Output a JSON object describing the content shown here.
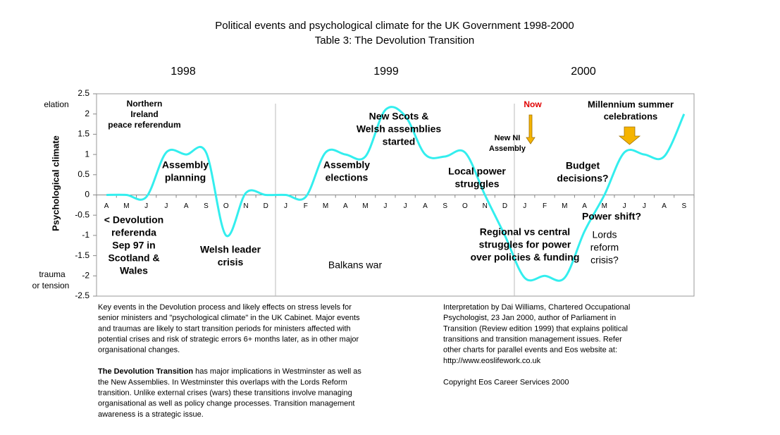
{
  "chart_data": {
    "type": "line",
    "title": "Political events and psychological climate for the UK Government 1998-2000",
    "subtitle": "Table 3:  The Devolution Transition",
    "years": [
      "1998",
      "1999",
      "2000"
    ],
    "y_axis_label": "Psychological climate",
    "y_top_label": "elation",
    "y_bottom_label": [
      "trauma",
      "or tension"
    ],
    "categories": [
      "A",
      "M",
      "J",
      "J",
      "A",
      "S",
      "O",
      "N",
      "D",
      "J",
      "F",
      "M",
      "A",
      "M",
      "J",
      "J",
      "A",
      "S",
      "O",
      "N",
      "D",
      "J",
      "F",
      "M",
      "A",
      "M",
      "J",
      "J",
      "A",
      "S"
    ],
    "values": [
      0,
      0,
      -0.05,
      1.05,
      1,
      1.05,
      -1,
      0.05,
      0,
      0,
      -0.05,
      1.05,
      1,
      0.95,
      2.1,
      1.95,
      1,
      0.95,
      1.05,
      0,
      -1,
      -2.05,
      -2,
      -2.05,
      -0.9,
      0,
      1.05,
      1,
      0.95,
      2
    ],
    "color": "#33eeee",
    "ylim": [
      -2.5,
      2.5
    ],
    "yticks": [
      2.5,
      2,
      1.5,
      1,
      0.5,
      0,
      -0.5,
      -1,
      -1.5,
      -2,
      -2.5
    ],
    "annotations": [
      [
        "Northern",
        "Ireland",
        "peace referendum"
      ],
      [
        "Assembly",
        "planning"
      ],
      [
        "< Devolution",
        "referenda",
        "Sep 97 in",
        "Scotland &",
        "Wales"
      ],
      [
        "Welsh leader",
        "crisis"
      ],
      [
        "Balkans war"
      ],
      [
        "New Scots &",
        "Welsh assemblies",
        "started"
      ],
      [
        "Assembly",
        "elections"
      ],
      [
        "Local power",
        "struggles"
      ],
      [
        "Now"
      ],
      [
        "New NI",
        "Assembly"
      ],
      [
        "Regional vs central",
        "struggles for power",
        "over policies & funding"
      ],
      [
        "Millennium summer",
        "celebrations"
      ],
      [
        "Budget",
        "decisions?"
      ],
      [
        "Power shift?"
      ],
      [
        "Lords",
        "reform",
        "crisis?"
      ]
    ],
    "notes_left": [
      "Key events in the Devolution process and likely effects on stress levels for",
      "senior ministers and \"psychological climate\" in the UK Cabinet. Major events",
      "and traumas are likely to start transition periods for ministers affected with",
      "potential crises and risk of strategic  errors 6+ months later, as in other major",
      "organisational changes."
    ],
    "notes_left_bold": "The Devolution Transition",
    "notes_left_2": [
      " has major implications in Westminster as well as",
      "the New Assemblies.  In Westminster this overlaps with the Lords Reform",
      "transition.  Unlike external crises (wars) these transitions involve managing",
      "organisational as well as policy change processes.  Transition management",
      "awareness is a strategic issue."
    ],
    "notes_right": [
      "Interpretation by Dai Williams, Chartered Occupational",
      "Psychologist, 23 Jan 2000, author of Parliament in",
      "Transition (Review edition 1999) that explains political",
      "transitions and transition management issues. Refer",
      "other charts for parallel events and Eos website at:",
      "http://www.eoslifework.co.uk"
    ],
    "copyright": "Copyright Eos Career Services 2000"
  }
}
